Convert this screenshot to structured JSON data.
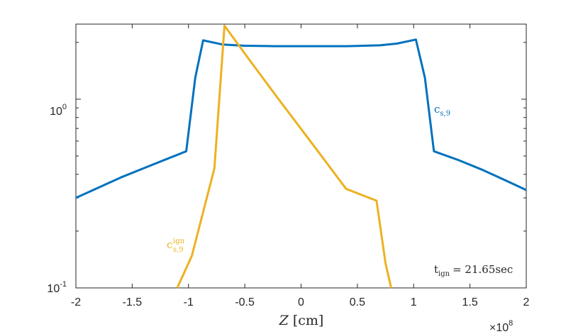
{
  "chart_data": {
    "type": "line",
    "title": "",
    "xlabel": "Z [cm]",
    "xlabel_parts": {
      "var": "Z",
      "unit": "[cm]"
    },
    "ylabel": "",
    "x_scale": 100000000,
    "x_exponent_label": {
      "base": "×10",
      "exp": "8"
    },
    "xlim": [
      -2,
      2
    ],
    "ylim": [
      0.1,
      2.5
    ],
    "yscale": "log",
    "x_ticks": [
      -2,
      -1.5,
      -1,
      -0.5,
      0,
      0.5,
      1,
      1.5,
      2
    ],
    "x_tick_labels": [
      "-2",
      "-1.5",
      "-1",
      "-0.5",
      "0",
      "0.5",
      "1",
      "1.5",
      "2"
    ],
    "y_ticks": [
      {
        "value": 0.1,
        "base": "10",
        "exp": "-1"
      },
      {
        "value": 1,
        "base": "10",
        "exp": "0"
      }
    ],
    "grid": false,
    "series": [
      {
        "name": "c_s,9",
        "label_base": "c",
        "label_sub": "s,9",
        "label_sup": "",
        "color": "#0072BD",
        "x": [
          -2.0,
          -1.8,
          -1.6,
          -1.4,
          -1.2,
          -1.02,
          -0.94,
          -0.87,
          -0.7,
          -0.5,
          -0.25,
          0.0,
          0.4,
          0.7,
          0.85,
          1.02,
          1.1,
          1.18,
          1.4,
          1.6,
          1.8,
          2.0
        ],
        "y": [
          0.3,
          0.34,
          0.385,
          0.43,
          0.48,
          0.53,
          1.3,
          2.05,
          1.95,
          1.92,
          1.91,
          1.91,
          1.91,
          1.93,
          1.97,
          2.07,
          1.3,
          0.53,
          0.475,
          0.425,
          0.375,
          0.33
        ]
      },
      {
        "name": "c_s,9^ign",
        "label_base": "c",
        "label_sub": "s,9",
        "label_sup": "ign",
        "color": "#EDB120",
        "x": [
          -1.1,
          -0.97,
          -0.77,
          -0.68,
          -0.48,
          -0.2,
          0.1,
          0.4,
          0.67,
          0.75,
          0.8
        ],
        "y": [
          0.1,
          0.148,
          0.43,
          2.45,
          1.68,
          1.0,
          0.58,
          0.335,
          0.29,
          0.135,
          0.1
        ]
      }
    ],
    "annotations": [
      {
        "id": "time",
        "var": "t",
        "sub": "ign",
        "text": "= 21.65sec"
      }
    ],
    "legend": "none"
  }
}
